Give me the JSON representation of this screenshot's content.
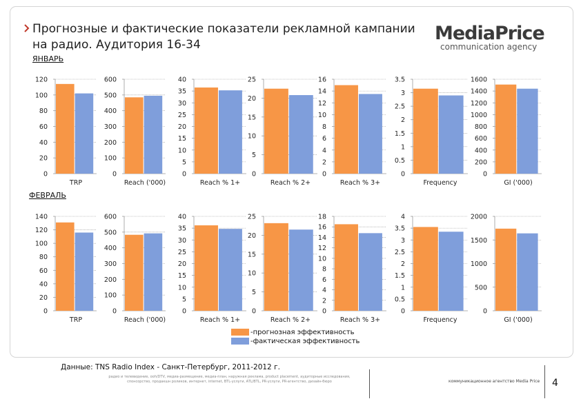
{
  "header": {
    "title": "Прогнозные и фактические показатели рекламной кампании на радио. Аудитория 16-34",
    "logo_main": "MediaPrice",
    "logo_sub": "communication agency"
  },
  "colors": {
    "forecast": "#f79646",
    "actual": "#7f9edb",
    "grid": "#8c8c8c",
    "axis": "#999999"
  },
  "months": [
    "ЯНВАРЬ",
    "ФЕВРАЛЬ"
  ],
  "chart_data": [
    {
      "type": "bar",
      "group": "ЯНВАРЬ",
      "label": "TRP",
      "series": [
        {
          "name": "прогнозная эффективность",
          "values": [
            114
          ]
        },
        {
          "name": "фактическая эффективность",
          "values": [
            102
          ]
        }
      ],
      "ylim": [
        0,
        120
      ],
      "ticks": [
        0,
        20,
        40,
        60,
        80,
        100,
        120
      ],
      "tick_labels": [
        "0",
        "20",
        "40",
        "60",
        "80",
        "100",
        "120"
      ]
    },
    {
      "type": "bar",
      "group": "ЯНВАРЬ",
      "label": "Reach ('000)",
      "series": [
        {
          "name": "прогнозная эффективность",
          "values": [
            485
          ]
        },
        {
          "name": "фактическая эффективность",
          "values": [
            495
          ]
        }
      ],
      "ylim": [
        0,
        600
      ],
      "ticks": [
        0,
        100,
        200,
        300,
        400,
        500,
        600
      ],
      "tick_labels": [
        "0",
        "100",
        "200",
        "300",
        "400",
        "500",
        "600"
      ]
    },
    {
      "type": "bar",
      "group": "ЯНВАРЬ",
      "label": "Reach % 1+",
      "series": [
        {
          "name": "прогнозная эффективность",
          "values": [
            36.5
          ]
        },
        {
          "name": "фактическая эффективность",
          "values": [
            35.3
          ]
        }
      ],
      "ylim": [
        0,
        40
      ],
      "ticks": [
        0,
        5,
        10,
        15,
        20,
        25,
        30,
        35,
        40
      ],
      "tick_labels": [
        "0",
        "5",
        "10",
        "15",
        "20",
        "25",
        "30",
        "35",
        "40"
      ]
    },
    {
      "type": "bar",
      "group": "ЯНВАРЬ",
      "label": "Reach % 2+",
      "series": [
        {
          "name": "прогнозная эффективность",
          "values": [
            22.5
          ]
        },
        {
          "name": "фактическая эффективность",
          "values": [
            20.8
          ]
        }
      ],
      "ylim": [
        0,
        25
      ],
      "ticks": [
        0,
        5,
        10,
        15,
        20,
        25
      ],
      "tick_labels": [
        "0",
        "5",
        "10",
        "15",
        "20",
        "25"
      ]
    },
    {
      "type": "bar",
      "group": "ЯНВАРЬ",
      "label": "Reach % 3+",
      "series": [
        {
          "name": "прогнозная эффективность",
          "values": [
            15
          ]
        },
        {
          "name": "фактическая эффективность",
          "values": [
            13.5
          ]
        }
      ],
      "ylim": [
        0,
        16
      ],
      "ticks": [
        0,
        2,
        4,
        6,
        8,
        10,
        12,
        14,
        16
      ],
      "tick_labels": [
        "0",
        "2",
        "4",
        "6",
        "8",
        "10",
        "12",
        "14",
        "16"
      ]
    },
    {
      "type": "bar",
      "group": "ЯНВАРЬ",
      "label": "Frequency",
      "series": [
        {
          "name": "прогнозная эффективность",
          "values": [
            3.15
          ]
        },
        {
          "name": "фактическая эффективность",
          "values": [
            2.9
          ]
        }
      ],
      "ylim": [
        0,
        3.5
      ],
      "ticks": [
        0,
        0.5,
        1,
        1.5,
        2,
        2.5,
        3,
        3.5
      ],
      "tick_labels": [
        "0",
        "0.5",
        "1",
        "1.5",
        "2",
        "2.5",
        "3",
        "3.5"
      ]
    },
    {
      "type": "bar",
      "group": "ЯНВАРЬ",
      "label": "GI ('000)",
      "series": [
        {
          "name": "прогнозная эффективность",
          "values": [
            1510
          ]
        },
        {
          "name": "фактическая эффективность",
          "values": [
            1440
          ]
        }
      ],
      "ylim": [
        0,
        1600
      ],
      "ticks": [
        0,
        200,
        400,
        600,
        800,
        1000,
        1200,
        1400,
        1600
      ],
      "tick_labels": [
        "0",
        "200",
        "400",
        "600",
        "800",
        "1000",
        "1200",
        "1400",
        "1600"
      ]
    },
    {
      "type": "bar",
      "group": "ФЕВРАЛЬ",
      "label": "TRP",
      "series": [
        {
          "name": "прогнозная эффективность",
          "values": [
            131
          ]
        },
        {
          "name": "фактическая эффективность",
          "values": [
            116
          ]
        }
      ],
      "ylim": [
        0,
        140
      ],
      "ticks": [
        0,
        20,
        40,
        60,
        80,
        100,
        120,
        140
      ],
      "tick_labels": [
        "0",
        "20",
        "40",
        "60",
        "80",
        "100",
        "120",
        "140"
      ]
    },
    {
      "type": "bar",
      "group": "ФЕВРАЛЬ",
      "label": "Reach ('000)",
      "series": [
        {
          "name": "прогнозная эффективность",
          "values": [
            483
          ]
        },
        {
          "name": "фактическая эффективность",
          "values": [
            492
          ]
        }
      ],
      "ylim": [
        0,
        600
      ],
      "ticks": [
        0,
        100,
        200,
        300,
        400,
        500,
        600
      ],
      "tick_labels": [
        "0",
        "100",
        "200",
        "300",
        "400",
        "500",
        "600"
      ]
    },
    {
      "type": "bar",
      "group": "ФЕВРАЛЬ",
      "label": "Reach % 1+",
      "series": [
        {
          "name": "прогнозная эффективность",
          "values": [
            36.2
          ]
        },
        {
          "name": "фактическая эффективность",
          "values": [
            34.7
          ]
        }
      ],
      "ylim": [
        0,
        40
      ],
      "ticks": [
        0,
        5,
        10,
        15,
        20,
        25,
        30,
        35,
        40
      ],
      "tick_labels": [
        "0",
        "5",
        "10",
        "15",
        "20",
        "25",
        "30",
        "35",
        "40"
      ]
    },
    {
      "type": "bar",
      "group": "ФЕВРАЛЬ",
      "label": "Reach % 2+",
      "series": [
        {
          "name": "прогнозная эффективность",
          "values": [
            23.2
          ]
        },
        {
          "name": "фактическая эффективность",
          "values": [
            21.5
          ]
        }
      ],
      "ylim": [
        0,
        25
      ],
      "ticks": [
        0,
        5,
        10,
        15,
        20,
        25
      ],
      "tick_labels": [
        "0",
        "5",
        "10",
        "15",
        "20",
        "25"
      ]
    },
    {
      "type": "bar",
      "group": "ФЕВРАЛЬ",
      "label": "Reach % 3+",
      "series": [
        {
          "name": "прогнозная эффективность",
          "values": [
            16.5
          ]
        },
        {
          "name": "фактическая эффективность",
          "values": [
            14.8
          ]
        }
      ],
      "ylim": [
        0,
        18
      ],
      "ticks": [
        0,
        2,
        4,
        6,
        8,
        10,
        12,
        14,
        16,
        18
      ],
      "tick_labels": [
        "0",
        "2",
        "4",
        "6",
        "8",
        "10",
        "12",
        "14",
        "16",
        "18"
      ]
    },
    {
      "type": "bar",
      "group": "ФЕВРАЛЬ",
      "label": "Frequency",
      "series": [
        {
          "name": "прогнозная эффективность",
          "values": [
            3.55
          ]
        },
        {
          "name": "фактическая эффективность",
          "values": [
            3.35
          ]
        }
      ],
      "ylim": [
        0,
        4
      ],
      "ticks": [
        0,
        0.5,
        1,
        1.5,
        2,
        2.5,
        3,
        3.5,
        4
      ],
      "tick_labels": [
        "0",
        "0.5",
        "1",
        "1.5",
        "2",
        "2.5",
        "3",
        "3.5",
        "4"
      ]
    },
    {
      "type": "bar",
      "group": "ФЕВРАЛЬ",
      "label": "GI ('000)",
      "series": [
        {
          "name": "прогнозная эффективность",
          "values": [
            1740
          ]
        },
        {
          "name": "фактическая эффективность",
          "values": [
            1640
          ]
        }
      ],
      "ylim": [
        0,
        2000
      ],
      "ticks": [
        0,
        500,
        1000,
        1500,
        2000
      ],
      "tick_labels": [
        "0",
        "500",
        "1000",
        "1500",
        "2000"
      ]
    }
  ],
  "legend": {
    "forecast": "-прогнозная эффективность",
    "actual": "-фактическая эффективность"
  },
  "footer": {
    "source": "Данные: TNS Radio Index - Санкт-Петербург, 2011-2012 г.",
    "small_text": "радио и телевидение, ooh/DTV, медиа-размещение, медиа-план, наружная реклама, product placement, аудиторные исследования, спонсорство, продакшн роликов, интернет, internet, BTL-услуги, ATL/BTL, PR-услуги, PR-агентство, дизайн-бюро",
    "right_text": "коммуникационное агентство Media Price",
    "page_number": "4"
  }
}
